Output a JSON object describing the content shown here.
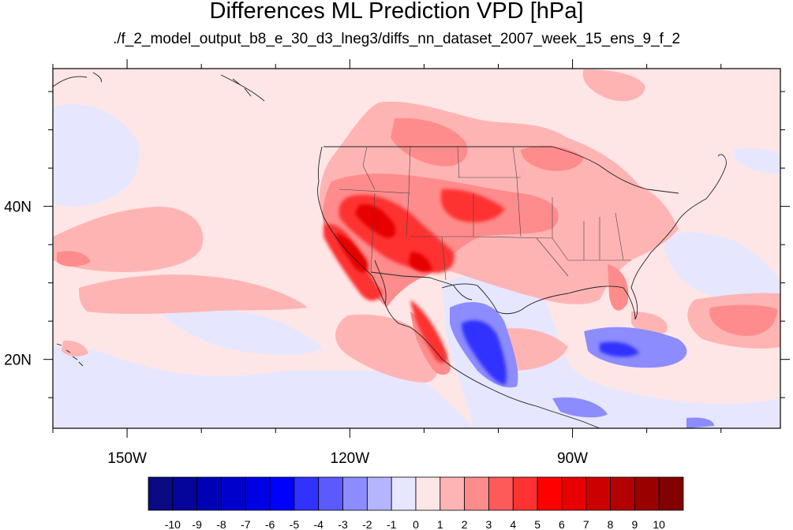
{
  "title": "Differences ML Prediction VPD [hPa]",
  "subtitle": "./f_2_model_output_b8_e_30_d3_lneg3/diffs_nn_dataset_2007_week_15_ens_9_f_2",
  "map": {
    "projection": "cylindrical-equidistant",
    "lon_range": [
      -160,
      -62
    ],
    "lat_range": [
      11,
      58
    ],
    "lon_ticks": [
      {
        "value": -150,
        "label": "150W"
      },
      {
        "value": -120,
        "label": "120W"
      },
      {
        "value": -90,
        "label": "90W"
      }
    ],
    "lat_ticks": [
      {
        "value": 40,
        "label": "40N"
      },
      {
        "value": 20,
        "label": "20N"
      }
    ],
    "background_value": 0.5
  },
  "colorbar": {
    "labels": [
      "-10",
      "-9",
      "-8",
      "-7",
      "-6",
      "-5",
      "-4",
      "-3",
      "-2",
      "-1",
      "0",
      "1",
      "2",
      "3",
      "4",
      "5",
      "6",
      "7",
      "8",
      "9",
      "10"
    ],
    "colors": [
      "#0a0a82",
      "#05059b",
      "#0000b4",
      "#0000cd",
      "#0000e6",
      "#0000ff",
      "#3232ff",
      "#5a5aff",
      "#8c8cff",
      "#b4b4ff",
      "#e6e6ff",
      "#ffe6e6",
      "#ffb4b4",
      "#ff8c8c",
      "#ff5a5a",
      "#ff3232",
      "#ff0000",
      "#e60000",
      "#cd0000",
      "#b40000",
      "#9b0000",
      "#820000"
    ]
  }
}
